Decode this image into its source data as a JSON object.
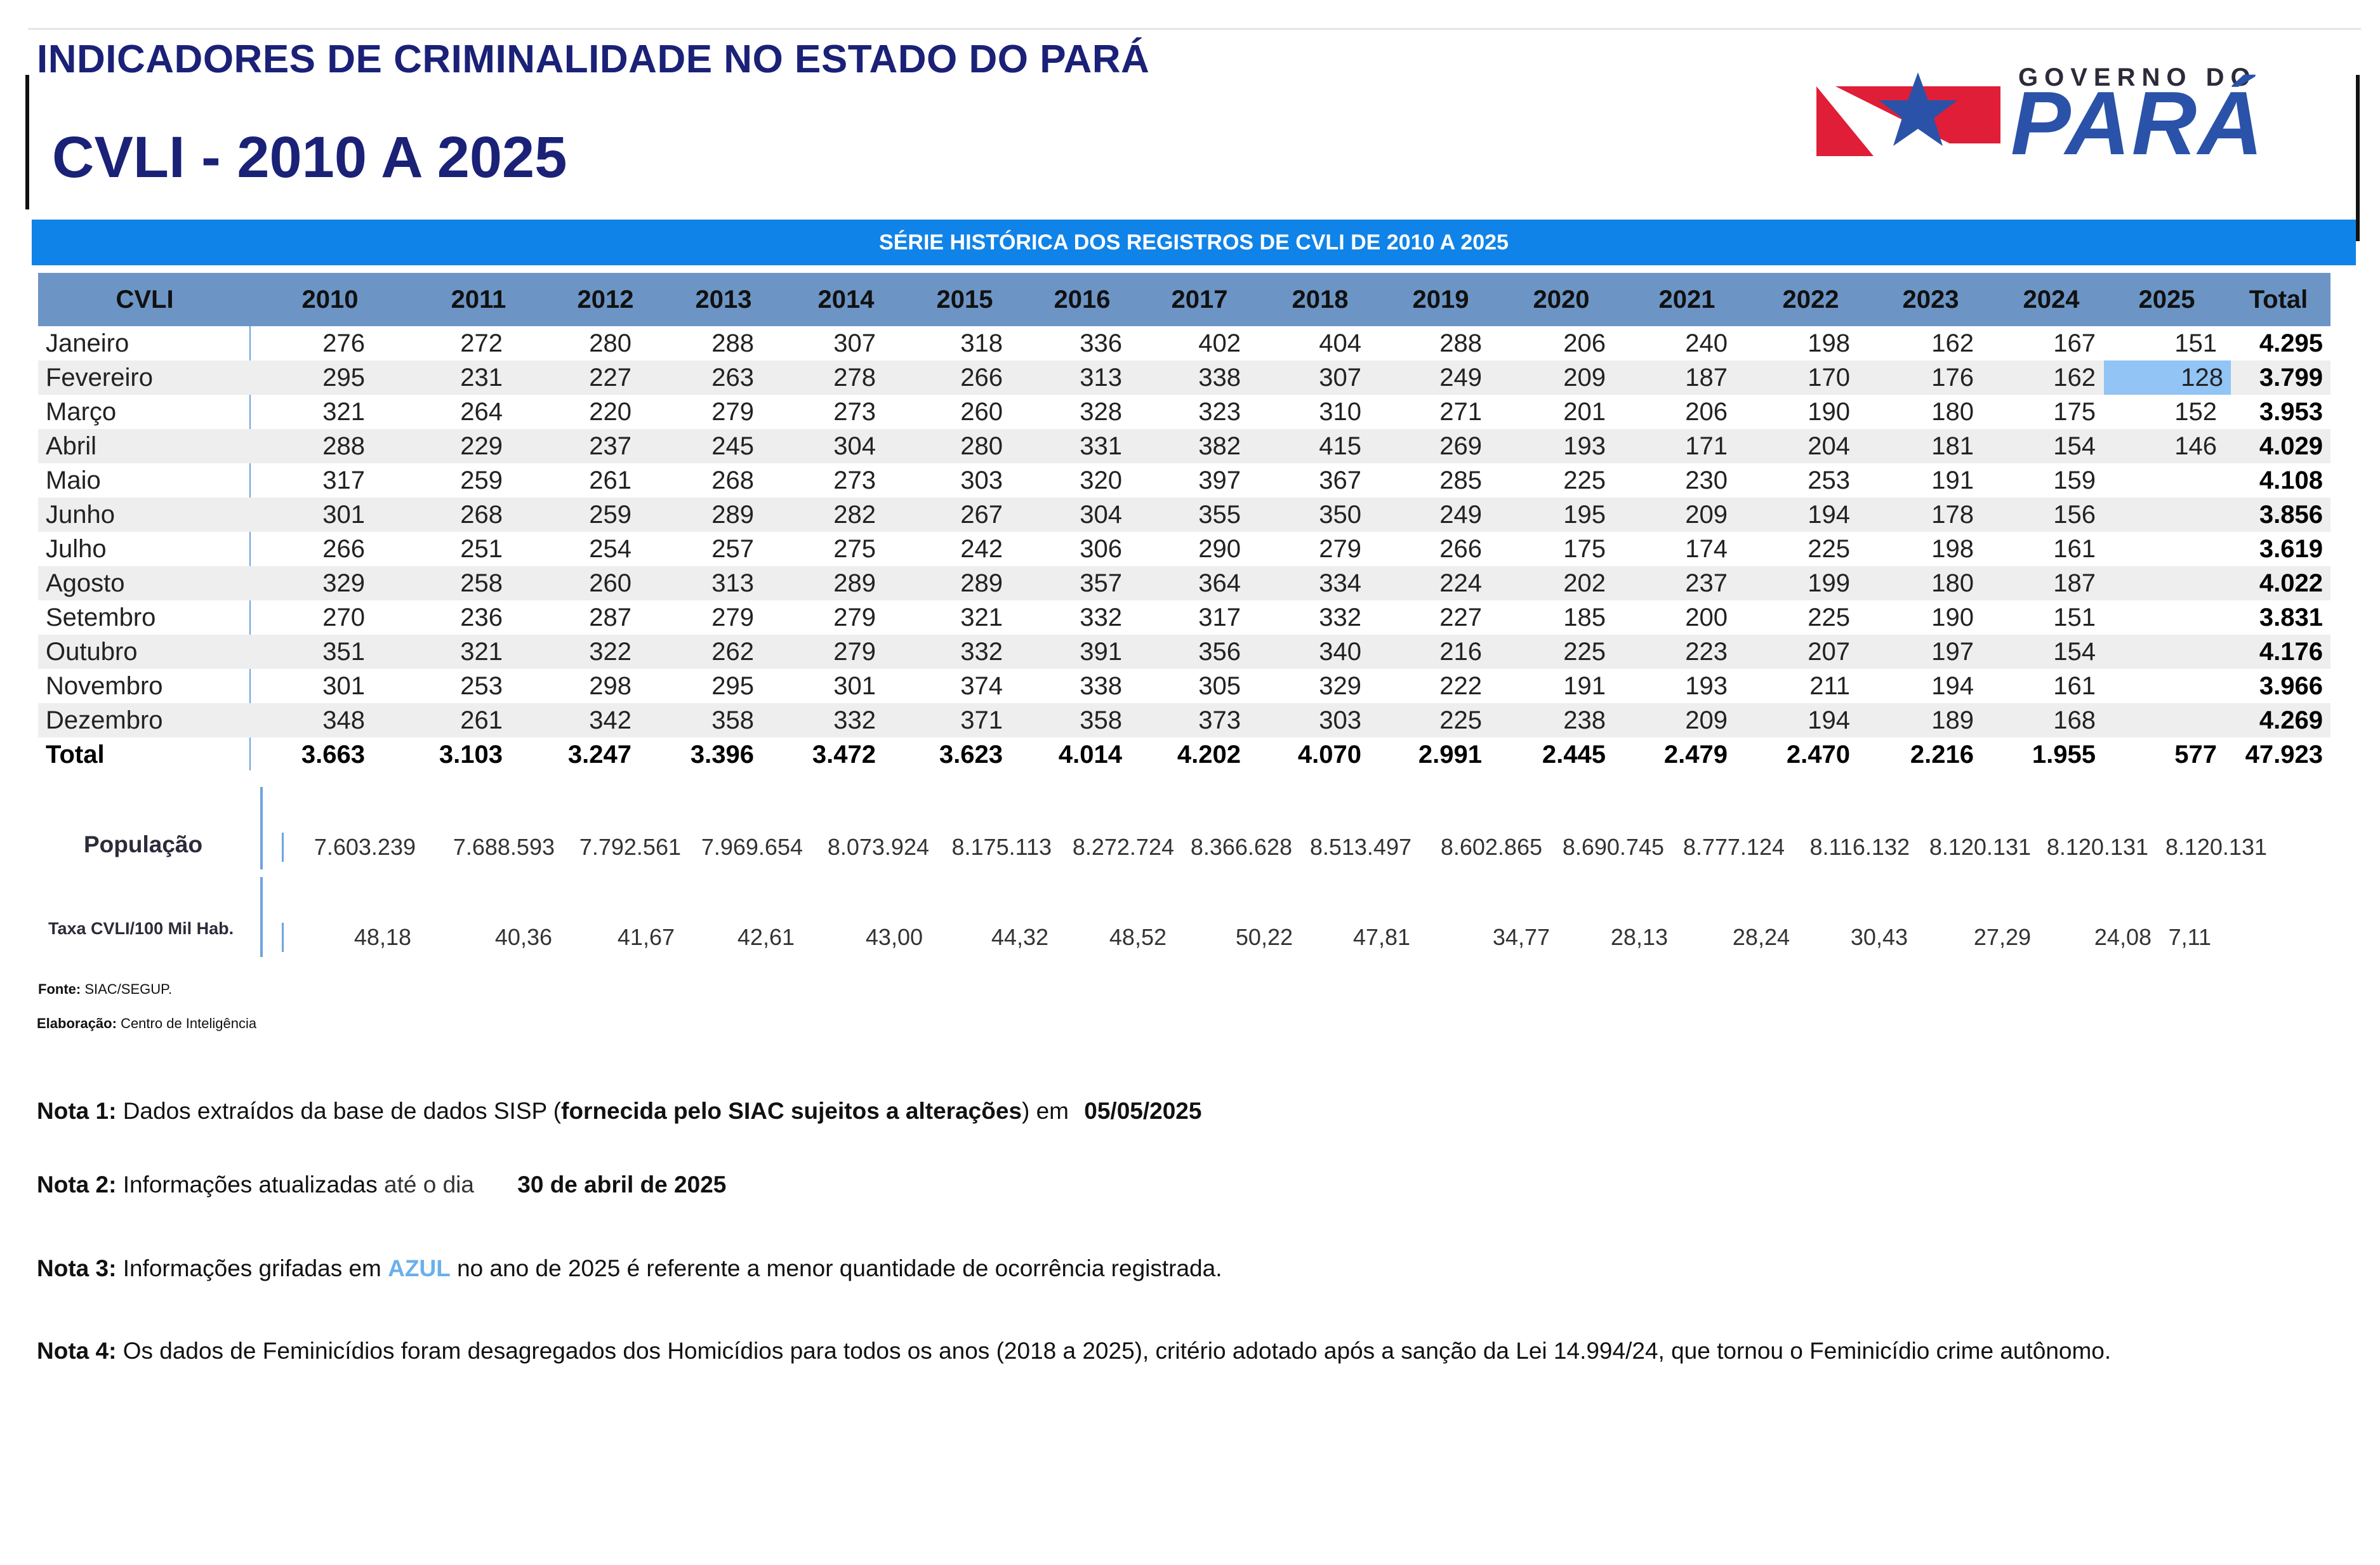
{
  "header": {
    "title": "INDICADORES DE CRIMINALIDADE NO ESTADO DO PARÁ",
    "subtitle": "CVLI - 2010 A 2025",
    "logo_small": "GOVERNO DO",
    "logo_big": "PARÁ",
    "logo_colors": {
      "red": "#e01e37",
      "blue": "#2a52a8"
    }
  },
  "banner": "SÉRIE HISTÓRICA DOS REGISTROS DE CVLI DE 2010 A 2025",
  "table": {
    "columns": [
      "CVLI",
      "2010",
      "2011",
      "2012",
      "2013",
      "2014",
      "2015",
      "2016",
      "2017",
      "2018",
      "2019",
      "2020",
      "2021",
      "2022",
      "2023",
      "2024",
      "2025",
      "Total"
    ],
    "rows": [
      {
        "label": "Janeiro",
        "values": [
          "276",
          "272",
          "280",
          "288",
          "307",
          "318",
          "336",
          "402",
          "404",
          "288",
          "206",
          "240",
          "198",
          "162",
          "167",
          "151"
        ],
        "total": "4.295"
      },
      {
        "label": "Fevereiro",
        "values": [
          "295",
          "231",
          "227",
          "263",
          "278",
          "266",
          "313",
          "338",
          "307",
          "249",
          "209",
          "187",
          "170",
          "176",
          "162",
          "128"
        ],
        "total": "3.799"
      },
      {
        "label": "Março",
        "values": [
          "321",
          "264",
          "220",
          "279",
          "273",
          "260",
          "328",
          "323",
          "310",
          "271",
          "201",
          "206",
          "190",
          "180",
          "175",
          "152"
        ],
        "total": "3.953"
      },
      {
        "label": "Abril",
        "values": [
          "288",
          "229",
          "237",
          "245",
          "304",
          "280",
          "331",
          "382",
          "415",
          "269",
          "193",
          "171",
          "204",
          "181",
          "154",
          "146"
        ],
        "total": "4.029"
      },
      {
        "label": "Maio",
        "values": [
          "317",
          "259",
          "261",
          "268",
          "273",
          "303",
          "320",
          "397",
          "367",
          "285",
          "225",
          "230",
          "253",
          "191",
          "159",
          ""
        ],
        "total": "4.108"
      },
      {
        "label": "Junho",
        "values": [
          "301",
          "268",
          "259",
          "289",
          "282",
          "267",
          "304",
          "355",
          "350",
          "249",
          "195",
          "209",
          "194",
          "178",
          "156",
          ""
        ],
        "total": "3.856"
      },
      {
        "label": "Julho",
        "values": [
          "266",
          "251",
          "254",
          "257",
          "275",
          "242",
          "306",
          "290",
          "279",
          "266",
          "175",
          "174",
          "225",
          "198",
          "161",
          ""
        ],
        "total": "3.619"
      },
      {
        "label": "Agosto",
        "values": [
          "329",
          "258",
          "260",
          "313",
          "289",
          "289",
          "357",
          "364",
          "334",
          "224",
          "202",
          "237",
          "199",
          "180",
          "187",
          ""
        ],
        "total": "4.022"
      },
      {
        "label": "Setembro",
        "values": [
          "270",
          "236",
          "287",
          "279",
          "279",
          "321",
          "332",
          "317",
          "332",
          "227",
          "185",
          "200",
          "225",
          "190",
          "151",
          ""
        ],
        "total": "3.831"
      },
      {
        "label": "Outubro",
        "values": [
          "351",
          "321",
          "322",
          "262",
          "279",
          "332",
          "391",
          "356",
          "340",
          "216",
          "225",
          "223",
          "207",
          "197",
          "154",
          ""
        ],
        "total": "4.176"
      },
      {
        "label": "Novembro",
        "values": [
          "301",
          "253",
          "298",
          "295",
          "301",
          "374",
          "338",
          "305",
          "329",
          "222",
          "191",
          "193",
          "211",
          "194",
          "161",
          ""
        ],
        "total": "3.966"
      },
      {
        "label": "Dezembro",
        "values": [
          "348",
          "261",
          "342",
          "358",
          "332",
          "371",
          "358",
          "373",
          "303",
          "225",
          "238",
          "209",
          "194",
          "189",
          "168",
          ""
        ],
        "total": "4.269"
      }
    ],
    "total_row": {
      "label": "Total",
      "values": [
        "3.663",
        "3.103",
        "3.247",
        "3.396",
        "3.472",
        "3.623",
        "4.014",
        "4.202",
        "4.070",
        "2.991",
        "2.445",
        "2.479",
        "2.470",
        "2.216",
        "1.955",
        "577"
      ],
      "total": "47.923"
    },
    "highlight": {
      "row": 1,
      "col": 15,
      "color": "#92c4f5"
    }
  },
  "population": {
    "label": "População",
    "values": [
      "7.603.239",
      "7.688.593",
      "7.792.561",
      "7.969.654",
      "8.073.924",
      "8.175.113",
      "8.272.724",
      "8.366.628",
      "8.513.497",
      "8.602.865",
      "8.690.745",
      "8.777.124",
      "8.116.132",
      "8.120.131",
      "8.120.131",
      "8.120.131"
    ]
  },
  "rate": {
    "label": "Taxa CVLI/100 Mil Hab.",
    "values": [
      "48,18",
      "40,36",
      "41,67",
      "42,61",
      "43,00",
      "44,32",
      "48,52",
      "50,22",
      "47,81",
      "34,77",
      "28,13",
      "28,24",
      "30,43",
      "27,29",
      "24,08",
      "7,11"
    ]
  },
  "source": {
    "fonte_label": "Fonte:",
    "fonte_value": "SIAC/SEGUP.",
    "elab_label": "Elaboração:",
    "elab_value": "Centro de Inteligência"
  },
  "notes": {
    "n1": {
      "label": "Nota 1:",
      "a": "Dados extraídos da base de dados SISP (",
      "b": "fornecida pelo SIAC sujeitos a alterações",
      "c": ") em",
      "date": "05/05/2025"
    },
    "n2": {
      "label": "Nota 2:",
      "a": "Informações atualizadas",
      "b": "até o dia",
      "date": "30 de abril de 2025"
    },
    "n3": {
      "label": "Nota 3:",
      "a": "Informações grifadas em",
      "azul": "AZUL",
      "b": "no ano de 2025 é referente a menor quantidade de ocorrência registrada."
    },
    "n4": {
      "label": "Nota 4:",
      "a": "Os dados de Feminicídios foram desagregados dos Homicídios para todos os anos (2018 a 2025), critério adotado após a sanção da Lei 14.994/24, que tornou o Feminicídio crime autônomo."
    }
  }
}
